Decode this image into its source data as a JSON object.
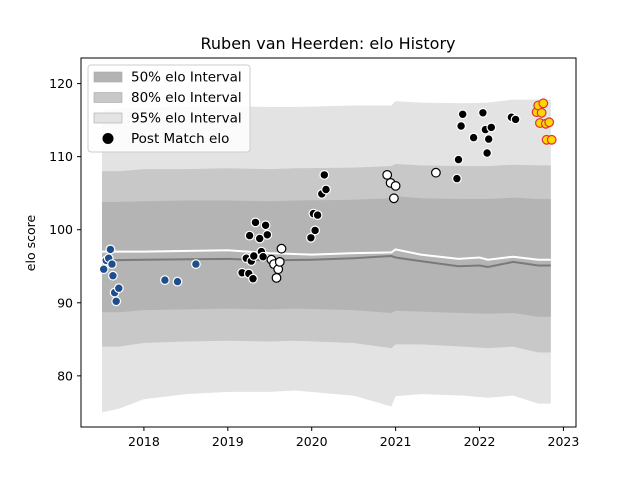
{
  "chart_data": {
    "type": "scatter",
    "title": "Ruben van Heerden: elo History",
    "xlabel": "",
    "ylabel": "elo score",
    "xlim": [
      2017.25,
      2023.15
    ],
    "ylim": [
      73.0,
      123.5
    ],
    "x_ticks": [
      2018,
      2019,
      2020,
      2021,
      2022,
      2023
    ],
    "y_ticks": [
      80,
      90,
      100,
      110,
      120
    ],
    "grid": false,
    "legend_position": "top-left",
    "legend": [
      {
        "label": "50% elo Interval",
        "kind": "band",
        "color": "#b3b3b3"
      },
      {
        "label": "80% elo Interval",
        "kind": "band",
        "color": "#c8c8c8"
      },
      {
        "label": "95% elo Interval",
        "kind": "band",
        "color": "#e3e3e3"
      },
      {
        "label": "Post Match elo",
        "kind": "marker",
        "color": "#000000"
      }
    ],
    "band_x": [
      2017.5,
      2017.7,
      2018.0,
      2018.5,
      2019.0,
      2019.5,
      2019.8,
      2020.5,
      2020.95,
      2021.0,
      2021.3,
      2021.8,
      2022.1,
      2022.4,
      2022.7,
      2022.85
    ],
    "band_95_low": [
      75.0,
      75.5,
      76.8,
      77.5,
      77.8,
      77.8,
      78.0,
      77.3,
      75.8,
      77.2,
      77.5,
      77.3,
      77.0,
      77.3,
      76.2,
      76.2
    ],
    "band_95_high": [
      116.3,
      116.6,
      116.7,
      116.8,
      116.9,
      116.8,
      116.8,
      117.0,
      117.0,
      117.6,
      117.4,
      117.3,
      117.4,
      117.8,
      117.8,
      117.8
    ],
    "band_80_low": [
      84.0,
      84.0,
      84.5,
      84.7,
      84.8,
      84.7,
      84.8,
      84.5,
      83.8,
      84.3,
      84.3,
      84.0,
      83.8,
      84.0,
      83.2,
      83.2
    ],
    "band_80_high": [
      108.0,
      108.0,
      108.3,
      108.3,
      108.4,
      108.3,
      108.4,
      108.5,
      108.7,
      109.0,
      108.8,
      108.7,
      108.7,
      108.9,
      108.8,
      108.8
    ],
    "band_50_low": [
      88.7,
      88.7,
      89.0,
      89.1,
      89.2,
      89.1,
      89.2,
      89.0,
      88.6,
      88.9,
      88.8,
      88.6,
      88.5,
      88.6,
      88.1,
      88.1
    ],
    "band_50_high": [
      103.8,
      103.8,
      103.9,
      104.0,
      104.0,
      103.9,
      104.0,
      104.1,
      104.3,
      104.6,
      104.3,
      104.2,
      104.2,
      104.4,
      104.2,
      104.2
    ],
    "median_x": [
      2017.5,
      2018.0,
      2019.0,
      2019.5,
      2020.0,
      2020.5,
      2020.95,
      2021.0,
      2021.3,
      2021.75,
      2022.0,
      2022.1,
      2022.4,
      2022.7,
      2022.85
    ],
    "median_y": [
      95.8,
      95.9,
      96.0,
      95.8,
      95.9,
      96.1,
      96.4,
      96.2,
      95.7,
      95.0,
      95.1,
      94.9,
      95.6,
      95.1,
      95.1
    ],
    "mean_x": [
      2017.5,
      2018.0,
      2019.0,
      2019.5,
      2020.0,
      2020.5,
      2020.95,
      2021.0,
      2021.3,
      2021.75,
      2022.0,
      2022.1,
      2022.4,
      2022.7,
      2022.85
    ],
    "mean_y": [
      97.0,
      97.0,
      97.2,
      96.8,
      96.6,
      96.8,
      96.9,
      97.3,
      96.6,
      96.0,
      96.2,
      95.9,
      96.3,
      95.9,
      95.9
    ],
    "series": [
      {
        "marker_fill": "#1f4e8c",
        "marker_edge": "#ffffff",
        "points": [
          [
            2017.52,
            94.6
          ],
          [
            2017.55,
            95.8
          ],
          [
            2017.58,
            96.1
          ],
          [
            2017.6,
            97.3
          ],
          [
            2017.62,
            95.3
          ],
          [
            2017.63,
            93.7
          ],
          [
            2017.65,
            91.4
          ],
          [
            2017.67,
            90.2
          ],
          [
            2017.7,
            92.0
          ],
          [
            2018.25,
            93.1
          ],
          [
            2018.4,
            92.9
          ],
          [
            2018.62,
            95.3
          ]
        ]
      },
      {
        "marker_fill": "#000000",
        "marker_edge": "#ffffff",
        "points": [
          [
            2019.17,
            94.1
          ],
          [
            2019.22,
            96.1
          ],
          [
            2019.25,
            94.0
          ],
          [
            2019.26,
            99.2
          ],
          [
            2019.28,
            95.7
          ],
          [
            2019.3,
            93.3
          ],
          [
            2019.31,
            96.4
          ],
          [
            2019.33,
            101.0
          ],
          [
            2019.38,
            98.8
          ],
          [
            2019.4,
            97.0
          ],
          [
            2019.42,
            96.3
          ],
          [
            2019.45,
            100.6
          ],
          [
            2019.47,
            99.3
          ],
          [
            2019.99,
            98.9
          ],
          [
            2020.02,
            102.2
          ],
          [
            2020.04,
            99.9
          ],
          [
            2020.07,
            102.0
          ],
          [
            2020.12,
            104.9
          ],
          [
            2020.15,
            107.5
          ],
          [
            2020.17,
            105.5
          ],
          [
            2021.73,
            107.0
          ],
          [
            2021.75,
            109.6
          ],
          [
            2021.78,
            114.2
          ],
          [
            2021.8,
            115.8
          ],
          [
            2021.93,
            112.6
          ],
          [
            2022.04,
            116.0
          ],
          [
            2022.07,
            113.7
          ],
          [
            2022.09,
            110.5
          ],
          [
            2022.11,
            112.4
          ],
          [
            2022.14,
            114.0
          ],
          [
            2022.38,
            115.4
          ],
          [
            2022.43,
            115.1
          ]
        ]
      },
      {
        "marker_fill": "#ffffff",
        "marker_edge": "#000000",
        "points": [
          [
            2019.52,
            95.9
          ],
          [
            2019.55,
            95.3
          ],
          [
            2019.58,
            93.4
          ],
          [
            2019.6,
            94.6
          ],
          [
            2019.62,
            95.6
          ],
          [
            2019.64,
            97.4
          ],
          [
            2020.9,
            107.5
          ],
          [
            2020.94,
            106.4
          ],
          [
            2020.98,
            104.3
          ],
          [
            2021.0,
            106.0
          ],
          [
            2021.48,
            107.8
          ]
        ]
      },
      {
        "marker_fill": "#ffd700",
        "marker_edge": "#e03030",
        "points": [
          [
            2022.68,
            116.1
          ],
          [
            2022.7,
            117.0
          ],
          [
            2022.72,
            114.6
          ],
          [
            2022.74,
            116.0
          ],
          [
            2022.76,
            117.3
          ],
          [
            2022.79,
            114.5
          ],
          [
            2022.8,
            112.3
          ],
          [
            2022.83,
            114.7
          ],
          [
            2022.86,
            112.3
          ]
        ]
      }
    ]
  }
}
